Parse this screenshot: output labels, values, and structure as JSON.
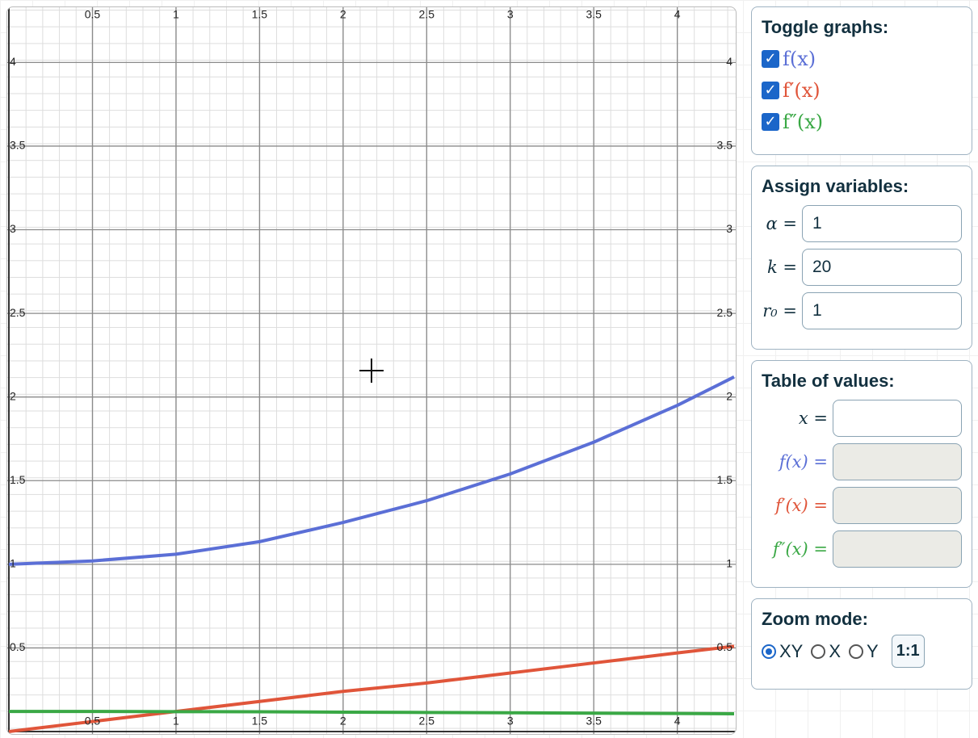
{
  "graph": {
    "type": "line",
    "xlim": [
      0,
      4.34
    ],
    "ylim": [
      0,
      4.33
    ],
    "xticks": [
      0.5,
      1,
      1.5,
      2,
      2.5,
      3,
      3.5,
      4
    ],
    "yticks": [
      0.5,
      1,
      1.5,
      2,
      2.5,
      3,
      3.5,
      4
    ],
    "x": [
      0,
      0.5,
      1,
      1.5,
      2,
      2.5,
      3,
      3.5,
      4,
      4.34
    ],
    "series": [
      {
        "name": "f(x)",
        "color": "#5b6fd6",
        "values": [
          1,
          1.02,
          1.06,
          1.135,
          1.25,
          1.38,
          1.54,
          1.73,
          1.95,
          2.12
        ]
      },
      {
        "name": "f′(x)",
        "color": "#e0553a",
        "values": [
          0,
          0.06,
          0.12,
          0.18,
          0.24,
          0.29,
          0.35,
          0.41,
          0.47,
          0.51
        ]
      },
      {
        "name": "f″(x)",
        "color": "#3aa845",
        "values": [
          0.12,
          0.12,
          0.119,
          0.118,
          0.116,
          0.114,
          0.112,
          0.11,
          0.108,
          0.106
        ]
      }
    ]
  },
  "panel": {
    "toggles": {
      "title": "Toggle graphs:",
      "checked": [
        true,
        true,
        true
      ]
    },
    "variables": {
      "title": "Assign variables:",
      "rows": [
        [
          "α =",
          "1"
        ],
        [
          "k =",
          "20"
        ],
        [
          "r₀ =",
          "1"
        ]
      ]
    },
    "table": {
      "title": "Table of values:",
      "labels": [
        "x =",
        "f(x) =",
        "f′(x) =",
        "f″(x) ="
      ]
    },
    "zoom": {
      "title": "Zoom mode:",
      "options": [
        "XY",
        "X",
        "Y"
      ],
      "selected": 0,
      "button": "1:1"
    }
  }
}
